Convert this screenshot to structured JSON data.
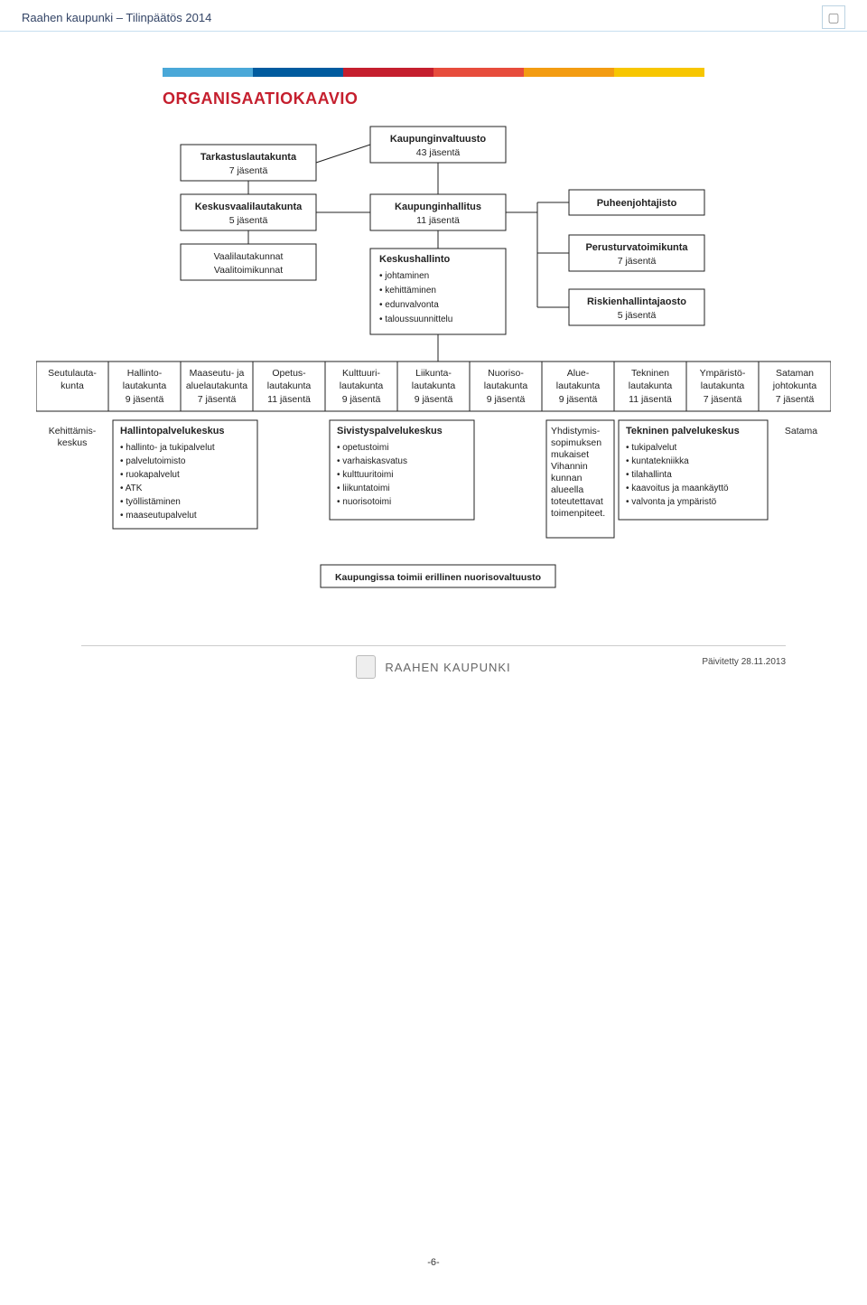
{
  "header": {
    "title": "Raahen kaupunki – Tilinpäätös 2014",
    "logo_alt": "▢"
  },
  "colorbar": [
    "#4aa8d8",
    "#005b9f",
    "#c51f2e",
    "#e74c3c",
    "#f39c12",
    "#f7c600"
  ],
  "section_title": "ORGANISAATIOKAAVIO",
  "section_title_color": "#c51f2e",
  "top": {
    "tarkastus": {
      "title": "Tarkastuslautakunta",
      "sub": "7 jäsentä"
    },
    "keskusvaali": {
      "title": "Keskusvaalilautakunta",
      "sub": "5 jäsentä"
    },
    "vaali": {
      "l1": "Vaalilautakunnat",
      "l2": "Vaalitoimikunnat"
    },
    "valtuusto": {
      "title": "Kaupunginvaltuusto",
      "sub": "43 jäsentä"
    },
    "hallitus": {
      "title": "Kaupunginhallitus",
      "sub": "11 jäsentä"
    },
    "keskushallinto": {
      "title": "Keskushallinto",
      "items": [
        "johtaminen",
        "kehittäminen",
        "edunvalvonta",
        "taloussuunnittelu"
      ]
    },
    "puheenjohtajisto": "Puheenjohtajisto",
    "perusturva": {
      "title": "Perusturvatoimikunta",
      "sub": "7 jäsentä"
    },
    "riskien": {
      "title": "Riskienhallintajaosto",
      "sub": "5 jäsentä"
    }
  },
  "row": [
    {
      "l1": "Seutulauta-",
      "l2": "kunta",
      "l3": ""
    },
    {
      "l1": "Hallinto-",
      "l2": "lautakunta",
      "l3": "9 jäsentä"
    },
    {
      "l1": "Maaseutu- ja",
      "l2": "aluelautakunta",
      "l3": "7 jäsentä"
    },
    {
      "l1": "Opetus-",
      "l2": "lautakunta",
      "l3": "11 jäsentä"
    },
    {
      "l1": "Kulttuuri-",
      "l2": "lautakunta",
      "l3": "9 jäsentä"
    },
    {
      "l1": "Liikunta-",
      "l2": "lautakunta",
      "l3": "9 jäsentä"
    },
    {
      "l1": "Nuoriso-",
      "l2": "lautakunta",
      "l3": "9 jäsentä"
    },
    {
      "l1": "Alue-",
      "l2": "lautakunta",
      "l3": "9 jäsentä"
    },
    {
      "l1": "Tekninen",
      "l2": "lautakunta",
      "l3": "11 jäsentä"
    },
    {
      "l1": "Ympäristö-",
      "l2": "lautakunta",
      "l3": "7 jäsentä"
    },
    {
      "l1": "Sataman",
      "l2": "johtokunta",
      "l3": "7 jäsentä"
    }
  ],
  "services": {
    "kehittamis": {
      "l1": "Kehittämis-",
      "l2": "keskus"
    },
    "hallintopk": {
      "title": "Hallintopalvelukeskus",
      "items": [
        "hallinto- ja tukipalvelut",
        "palvelutoimisto",
        "ruokapalvelut",
        "ATK",
        "työllistäminen",
        "maaseutupalvelut"
      ]
    },
    "sivistys": {
      "title": "Sivistyspalvelukeskus",
      "items": [
        "opetustoimi",
        "varhaiskasvatus",
        "kulttuuritoimi",
        "liikuntatoimi",
        "nuorisotoimi"
      ]
    },
    "yhdistymis": [
      "Yhdistymis-",
      "sopimuksen",
      "mukaiset",
      "Vihannin",
      "kunnan",
      "alueella",
      "toteutettavat",
      "toimenpiteet."
    ],
    "tekninenpk": {
      "title": "Tekninen palvelukeskus",
      "items": [
        "tukipalvelut",
        "kuntatekniikka",
        "tilahallinta",
        "kaavoitus ja maankäyttö",
        "valvonta ja ympäristö"
      ]
    },
    "satama": "Satama"
  },
  "footer_note": "Kaupungissa toimii erillinen nuorisovaltuusto",
  "brand": "RAAHEN KAUPUNKI",
  "updated": "Päivitetty 28.11.2013",
  "page_number": "-6-"
}
